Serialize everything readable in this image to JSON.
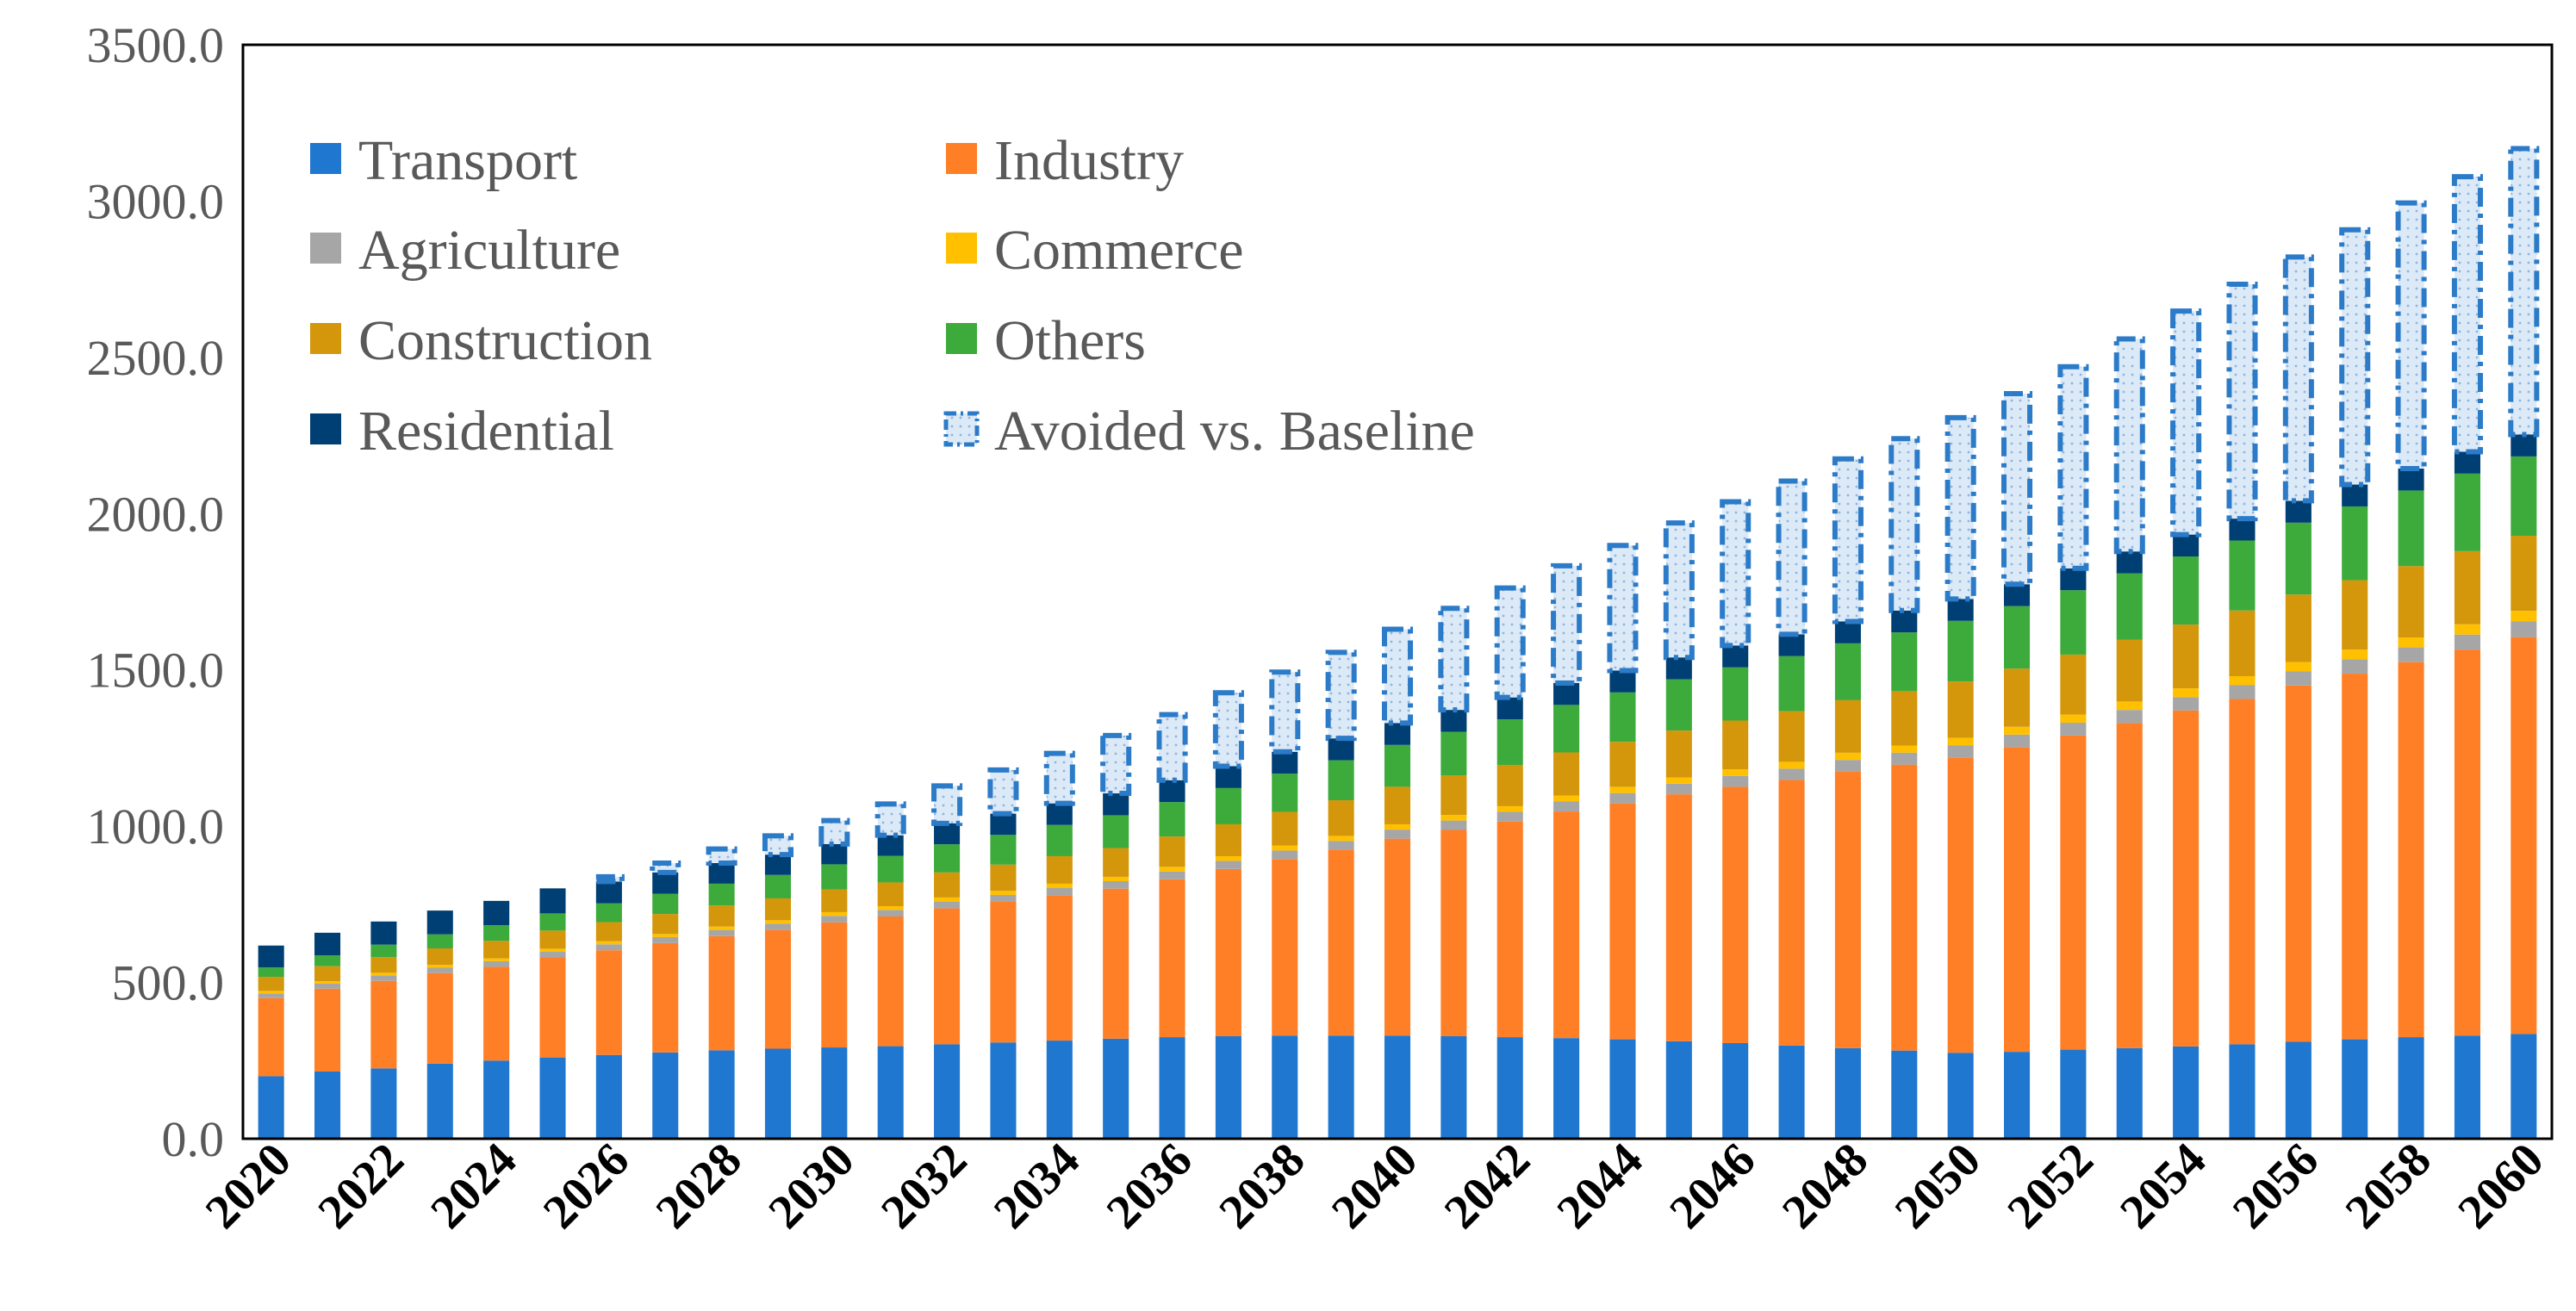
{
  "chart_data": {
    "type": "bar",
    "stacked": true,
    "title": "",
    "xlabel": "",
    "ylabel": "",
    "ylim": [
      0,
      3500
    ],
    "y_ticks": [
      "0.0",
      "500.0",
      "1000.0",
      "1500.0",
      "2000.0",
      "2500.0",
      "3000.0",
      "3500.0"
    ],
    "x_tick_labels": [
      "2020",
      "2022",
      "2024",
      "2026",
      "2028",
      "2030",
      "2032",
      "2034",
      "2036",
      "2038",
      "2040",
      "2042",
      "2044",
      "2046",
      "2048",
      "2050",
      "2052",
      "2054",
      "2056",
      "2058",
      "2060"
    ],
    "categories": [
      "2020",
      "2021",
      "2022",
      "2023",
      "2024",
      "2025",
      "2026",
      "2027",
      "2028",
      "2029",
      "2030",
      "2031",
      "2032",
      "2033",
      "2034",
      "2035",
      "2036",
      "2037",
      "2038",
      "2039",
      "2040",
      "2041",
      "2042",
      "2043",
      "2044",
      "2045",
      "2046",
      "2047",
      "2048",
      "2049",
      "2050",
      "2051",
      "2052",
      "2053",
      "2054",
      "2055",
      "2056",
      "2057",
      "2058",
      "2059",
      "2060"
    ],
    "grid": false,
    "legend_position": "top-left",
    "series": [
      {
        "name": "Transport",
        "color": "#1F77D0",
        "values": [
          200,
          215,
          225,
          240,
          250,
          260,
          268,
          276,
          283,
          288,
          292,
          296,
          302,
          308,
          314,
          320,
          325,
          328,
          330,
          330,
          330,
          328,
          325,
          322,
          318,
          312,
          306,
          298,
          290,
          282,
          275,
          278,
          285,
          290,
          295,
          302,
          310,
          318,
          325,
          330,
          335
        ]
      },
      {
        "name": "Industry",
        "color": "#FF7F27",
        "values": [
          250,
          265,
          280,
          290,
          300,
          320,
          335,
          350,
          365,
          380,
          400,
          415,
          435,
          450,
          465,
          480,
          505,
          535,
          565,
          595,
          630,
          660,
          690,
          725,
          755,
          790,
          820,
          850,
          885,
          915,
          945,
          975,
          1005,
          1040,
          1075,
          1105,
          1140,
          1170,
          1200,
          1235,
          1270
        ]
      },
      {
        "name": "Agriculture",
        "color": "#A6A6A6",
        "values": [
          15,
          16,
          17,
          17,
          18,
          18,
          19,
          19,
          20,
          20,
          21,
          21,
          22,
          22,
          23,
          24,
          25,
          26,
          27,
          28,
          29,
          30,
          31,
          32,
          33,
          34,
          35,
          36,
          37,
          38,
          39,
          40,
          41,
          42,
          43,
          44,
          45,
          46,
          47,
          48,
          50
        ]
      },
      {
        "name": "Commerce",
        "color": "#FFC000",
        "values": [
          8,
          8,
          9,
          9,
          9,
          10,
          10,
          10,
          11,
          11,
          12,
          12,
          13,
          13,
          14,
          14,
          15,
          15,
          16,
          16,
          17,
          18,
          18,
          19,
          20,
          20,
          21,
          22,
          23,
          23,
          24,
          25,
          26,
          27,
          28,
          29,
          30,
          31,
          32,
          33,
          34
        ]
      },
      {
        "name": "Construction",
        "color": "#D4960A",
        "values": [
          45,
          48,
          50,
          53,
          56,
          58,
          61,
          64,
          67,
          70,
          73,
          76,
          80,
          84,
          88,
          92,
          97,
          102,
          108,
          114,
          120,
          126,
          132,
          138,
          144,
          150,
          156,
          162,
          168,
          174,
          180,
          186,
          192,
          198,
          204,
          210,
          216,
          222,
          228,
          234,
          240
        ]
      },
      {
        "name": "Others",
        "color": "#3CAB3C",
        "values": [
          30,
          35,
          40,
          45,
          50,
          55,
          60,
          65,
          70,
          75,
          80,
          85,
          90,
          95,
          100,
          105,
          110,
          116,
          122,
          128,
          134,
          140,
          146,
          152,
          158,
          164,
          170,
          176,
          182,
          188,
          194,
          200,
          206,
          212,
          218,
          224,
          230,
          236,
          242,
          248,
          254
        ]
      },
      {
        "name": "Residential",
        "color": "#003F73",
        "values": [
          70,
          72,
          74,
          76,
          78,
          80,
          70,
          68,
          66,
          65,
          65,
          66,
          67,
          68,
          69,
          70,
          70,
          70,
          70,
          70,
          70,
          70,
          70,
          70,
          70,
          70,
          70,
          70,
          70,
          70,
          70,
          70,
          70,
          70,
          70,
          70,
          70,
          70,
          70,
          70,
          70
        ]
      },
      {
        "name": "Avoided vs. Baseline",
        "color": "#2C7BC8",
        "fill": "#DCE9F7",
        "style": "dash-dot outline",
        "values": [
          0,
          0,
          0,
          0,
          0,
          0,
          15,
          30,
          45,
          60,
          75,
          100,
          120,
          140,
          160,
          185,
          210,
          235,
          255,
          275,
          300,
          325,
          350,
          375,
          400,
          430,
          460,
          490,
          520,
          550,
          580,
          610,
          645,
          680,
          715,
          750,
          780,
          815,
          850,
          880,
          915
        ]
      }
    ]
  }
}
